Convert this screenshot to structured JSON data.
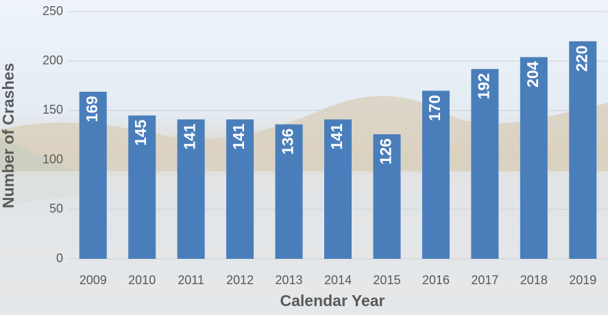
{
  "chart_data": {
    "type": "bar",
    "categories": [
      "2009",
      "2010",
      "2011",
      "2012",
      "2013",
      "2014",
      "2015",
      "2016",
      "2017",
      "2018",
      "2019"
    ],
    "values": [
      169,
      145,
      141,
      141,
      136,
      141,
      126,
      170,
      192,
      204,
      220
    ],
    "color": "#4a7ebb",
    "xlabel": "Calendar Year",
    "ylabel": "Number of Crashes",
    "ylim": [
      0,
      250
    ],
    "yticks": [
      0,
      50,
      100,
      150,
      200,
      250
    ],
    "grid": true
  }
}
